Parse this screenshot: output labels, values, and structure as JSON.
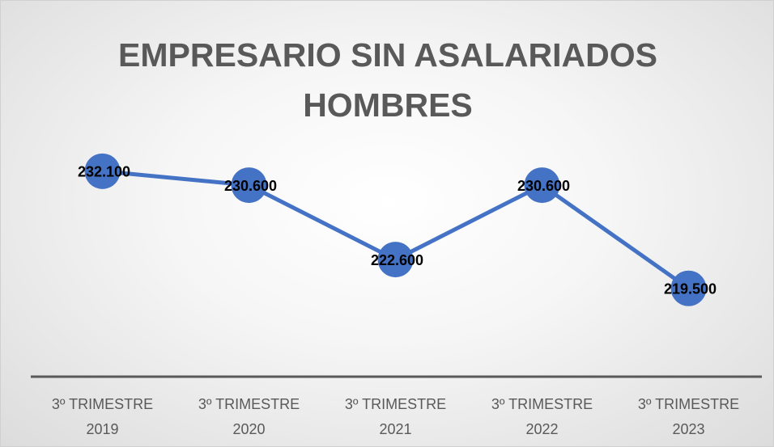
{
  "chart_data": {
    "type": "line",
    "title": "EMPRESARIO SIN ASALARIADOS HOMBRES",
    "categories": [
      "3º TRIMESTRE 2019",
      "3º TRIMESTRE 2020",
      "3º TRIMESTRE 2021",
      "3º TRIMESTRE 2022",
      "3º TRIMESTRE 2023"
    ],
    "values": [
      232100,
      230600,
      222600,
      230600,
      219500
    ],
    "value_labels": [
      "232.100",
      "230.600",
      "222.600",
      "230.600",
      "219.500"
    ],
    "color": "#4472c4",
    "ylim": [
      210000,
      240000
    ]
  }
}
